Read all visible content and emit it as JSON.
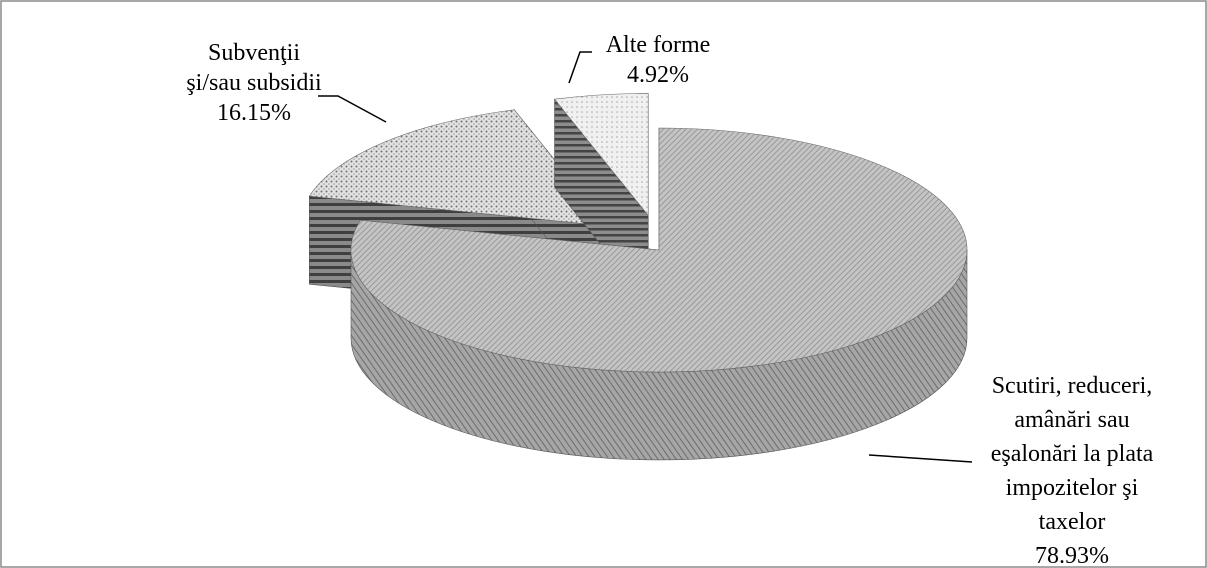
{
  "chart_data": {
    "type": "pie",
    "style": "3d-exploded",
    "legend": "none",
    "slices": [
      {
        "label_lines": [
          "Scutiri, reduceri,",
          "amânări sau",
          "eşalonări la plata",
          "impozitelor şi",
          "taxelor"
        ],
        "value": 78.93,
        "value_label": "78.93%",
        "exploded": false,
        "pattern": "fine-diagonal"
      },
      {
        "label_lines": [
          "Subvenţii",
          "şi/sau subsidii"
        ],
        "value": 16.15,
        "value_label": "16.15%",
        "exploded": true,
        "pattern": "dots"
      },
      {
        "label_lines": [
          "Alte forme"
        ],
        "value": 4.92,
        "value_label": "4.92%",
        "exploded": true,
        "pattern": "light-dots"
      }
    ]
  },
  "colors": {
    "border": "#8a8a8a",
    "slice_top_main": "#b4b4b4",
    "slice_side_main": "#8c8c8c",
    "slice_top_sub": "#d9d9d9",
    "slice_side_sub": "#6b6b6b",
    "slice_top_other": "#ececec",
    "slice_side_other": "#7a7a7a"
  }
}
